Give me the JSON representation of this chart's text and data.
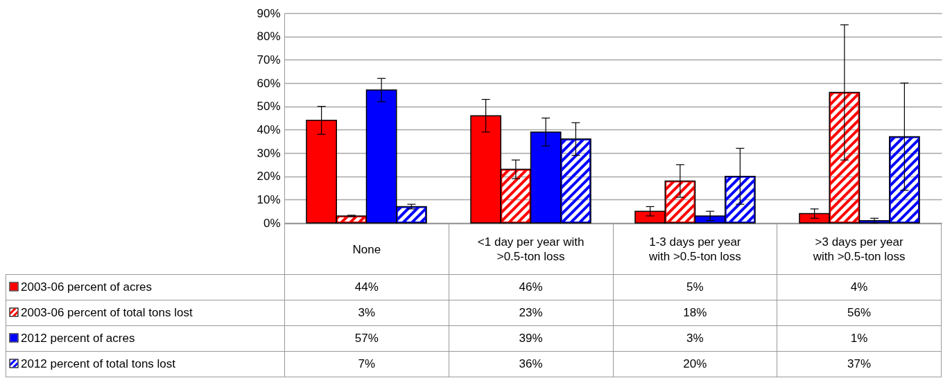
{
  "chart_data": {
    "type": "bar",
    "categories": [
      "None",
      "<1 day per year with >0.5-ton loss",
      "1-3 days per year with >0.5-ton loss",
      ">3 days per year with >0.5-ton loss"
    ],
    "series": [
      {
        "name": "2003-06 percent of acres",
        "color": "#ff0000",
        "values": [
          44,
          46,
          5,
          4
        ],
        "errors": [
          6,
          7,
          2,
          2
        ],
        "value_labels": [
          "44%",
          "46%",
          "5%",
          "4%"
        ]
      },
      {
        "name": "2003-06 percent of total tons lost",
        "color": "#ff0000",
        "values": [
          3,
          23,
          18,
          56
        ],
        "errors": [
          0.3,
          4,
          7,
          29
        ],
        "value_labels": [
          "3%",
          "23%",
          "18%",
          "56%"
        ]
      },
      {
        "name": "2012 percent of acres",
        "color": "#0000ff",
        "values": [
          57,
          39,
          3,
          1
        ],
        "errors": [
          5,
          6,
          2,
          1
        ],
        "value_labels": [
          "57%",
          "39%",
          "3%",
          "1%"
        ]
      },
      {
        "name": "2012 percent of total tons lost",
        "color": "#0000ff",
        "values": [
          7,
          36,
          20,
          37
        ],
        "errors": [
          1,
          7,
          12,
          23
        ],
        "value_labels": [
          "7%",
          "36%",
          "20%",
          "37%"
        ]
      }
    ],
    "ylim": [
      0,
      90
    ],
    "yticks": [
      {
        "value": 0,
        "label": "0%"
      },
      {
        "value": 10,
        "label": "10%"
      },
      {
        "value": 20,
        "label": "20%"
      },
      {
        "value": 30,
        "label": "30%"
      },
      {
        "value": 40,
        "label": "40%"
      },
      {
        "value": 50,
        "label": "50%"
      },
      {
        "value": 60,
        "label": "60%"
      },
      {
        "value": 70,
        "label": "70%"
      },
      {
        "value": 80,
        "label": "80%"
      },
      {
        "value": 90,
        "label": "90%"
      }
    ],
    "grid": "y",
    "legend": "bottom"
  }
}
